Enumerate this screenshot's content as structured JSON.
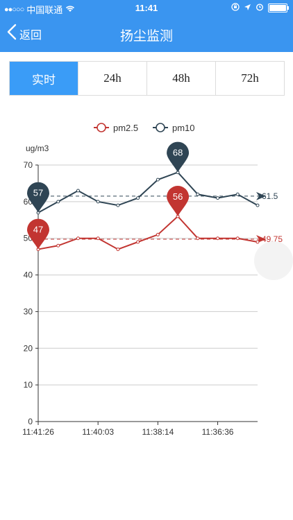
{
  "status_bar": {
    "carrier": "中国联通",
    "time": "11:41"
  },
  "nav": {
    "back_label": "返回",
    "title": "扬尘监测"
  },
  "tabs": [
    {
      "label": "实时",
      "active": true
    },
    {
      "label": "24h",
      "active": false
    },
    {
      "label": "48h",
      "active": false
    },
    {
      "label": "72h",
      "active": false
    }
  ],
  "colors": {
    "header": "#3a95f0",
    "pm25": "#c23531",
    "pm10": "#2f4554"
  },
  "chart_data": {
    "type": "line",
    "ylabel": "ug/m3",
    "ylim": [
      0,
      70
    ],
    "yticks": [
      0,
      10,
      20,
      30,
      40,
      50,
      60,
      70
    ],
    "x_ticks": [
      "11:41:26",
      "11:40:03",
      "11:38:14",
      "11:36:36"
    ],
    "legend_position": "top-center",
    "series": [
      {
        "name": "pm2.5",
        "color": "#c23531",
        "values": [
          47,
          48,
          50,
          50,
          47,
          49,
          51,
          56,
          50,
          50,
          50,
          49
        ],
        "max": {
          "index": 7,
          "value": 56
        },
        "min": {
          "index": 0,
          "value": 47
        },
        "average": 49.75,
        "average_label": "49.75"
      },
      {
        "name": "pm10",
        "color": "#2f4554",
        "values": [
          57,
          60,
          63,
          60,
          59,
          61,
          66,
          68,
          62,
          61,
          62,
          59
        ],
        "max": {
          "index": 7,
          "value": 68
        },
        "min": {
          "index": 0,
          "value": 57
        },
        "average": 61.5,
        "average_label": "61.5"
      }
    ]
  }
}
